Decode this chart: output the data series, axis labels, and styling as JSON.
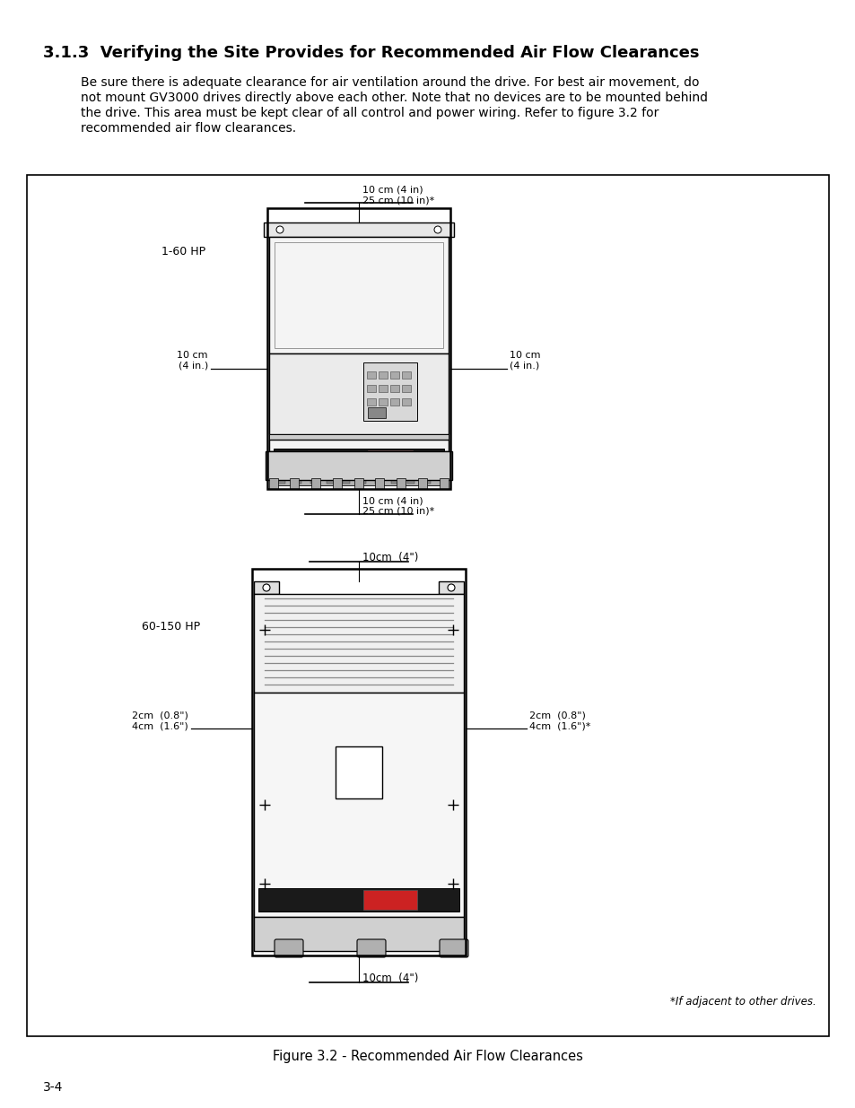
{
  "title": "3.1.3  Verifying the Site Provides for Recommended Air Flow Clearances",
  "body_lines": [
    "Be sure there is adequate clearance for air ventilation around the drive. For best air movement, do",
    "not mount GV3000 drives directly above each other. Note that no devices are to be mounted behind",
    "the drive. This area must be kept clear of all control and power wiring. Refer to figure 3.2 for",
    "recommended air flow clearances."
  ],
  "figure_caption": "Figure 3.2 - Recommended Air Flow Clearances",
  "page_number": "3-4",
  "bg_color": "#ffffff",
  "text_color": "#000000",
  "annotation_top_1_60": "10 cm (4 in)\n25 cm (10 in)*",
  "annotation_bottom_1_60": "10 cm (4 in)\n25 cm (10 in)*",
  "annotation_left_1_60": "10 cm\n(4 in.)",
  "annotation_right_1_60": "10 cm\n(4 in.)",
  "label_1_60": "1-60 HP",
  "annotation_top_60_150": "10cm  (4\")",
  "annotation_bottom_60_150": "10cm  (4\")",
  "annotation_left_60_150": "2cm  (0.8\")\n4cm  (1.6\")",
  "annotation_right_60_150": "2cm  (0.8\")\n4cm  (1.6\")*",
  "label_60_150": "60-150 HP",
  "footnote": "*If adjacent to other drives."
}
